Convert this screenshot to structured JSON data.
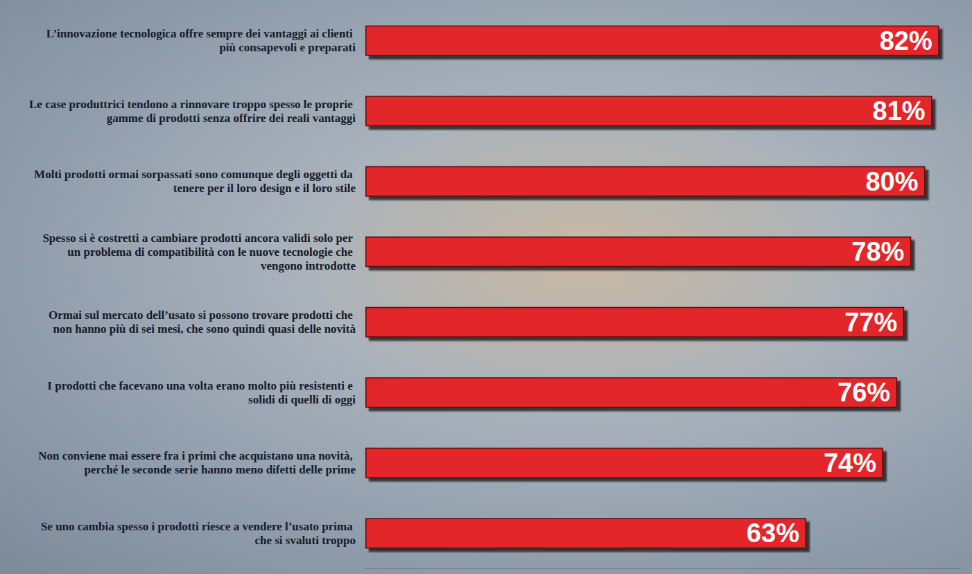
{
  "chart_data": {
    "type": "bar",
    "orientation": "horizontal",
    "categories": [
      "L’innovazione tecnologica offre sempre dei vantaggi ai clienti più consapevoli e preparati",
      "Le case produttrici tendono a rinnovare troppo spesso le proprie gamme di prodotti senza offrire dei reali vantaggi",
      "Molti prodotti ormai sorpassati sono comunque degli oggetti da tenere per il loro design e il loro stile",
      "Spesso si è costretti a cambiare prodotti ancora validi solo per un problema di compatibilità con le nuove tecnologie che vengono introdotte",
      "Ormai sul mercato dell’usato si possono trovare prodotti che non hanno più di sei mesi, che sono quindi quasi delle novità",
      "I prodotti che facevano una volta erano molto più resistenti e solidi di quelli di oggi",
      "Non conviene mai essere fra i primi che acquistano una novità, perché le seconde serie hanno meno difetti delle prime",
      "Se uno cambia spesso i prodotti riesce a vendere l’usato prima che si svaluti troppo"
    ],
    "values": [
      82,
      81,
      80,
      78,
      77,
      76,
      74,
      63
    ],
    "value_labels": [
      "82%",
      "81%",
      "80%",
      "78%",
      "77%",
      "76%",
      "74%",
      "63%"
    ],
    "color": "#e3262b",
    "xlim": [
      0,
      85
    ],
    "data_labels": true,
    "tick_labels": "y",
    "grid": false
  }
}
